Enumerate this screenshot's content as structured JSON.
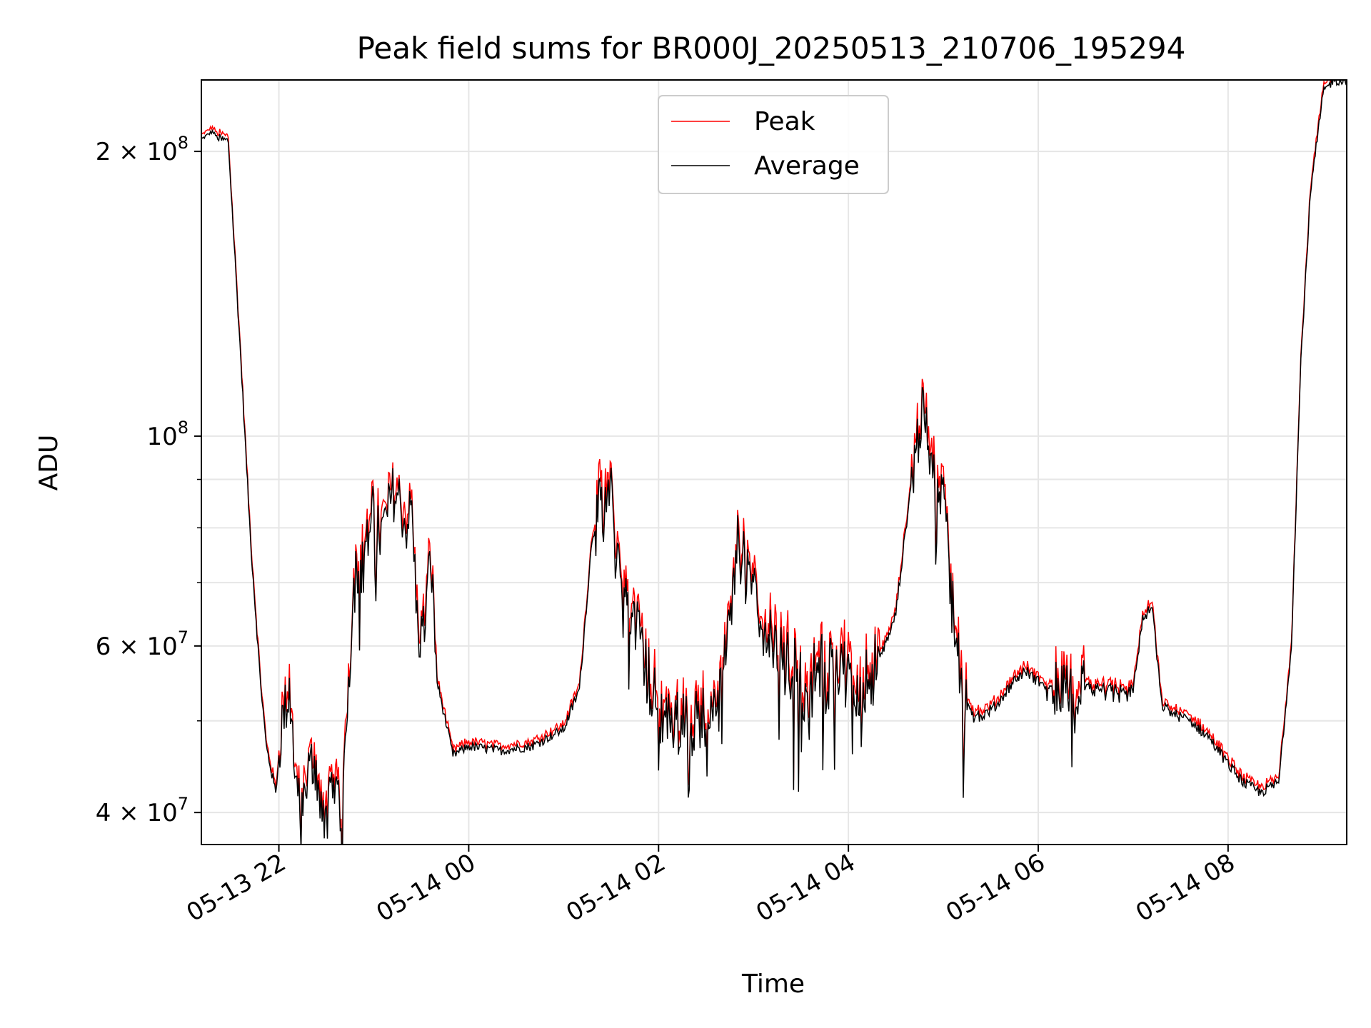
{
  "chart_data": {
    "type": "line",
    "title": "Peak field sums for BR000J_20250513_210706_195294",
    "xlabel": "Time",
    "ylabel": "ADU",
    "yscale": "log",
    "ylim": [
      37000000,
      238000000
    ],
    "xlim": [
      "05-13 21:11",
      "05-14 09:15"
    ],
    "grid": true,
    "legend_position": "upper center",
    "x_ticks": [
      "05-13 22",
      "05-14 00",
      "05-14 02",
      "05-14 04",
      "05-14 06",
      "05-14 08"
    ],
    "y_ticks": [
      {
        "mantissa": "4",
        "exp": "7",
        "value": 40000000
      },
      {
        "mantissa": "6",
        "exp": "7",
        "value": 60000000
      },
      {
        "mantissa": "",
        "exp": "8",
        "value": 100000000
      },
      {
        "mantissa": "2",
        "exp": "8",
        "value": 200000000
      }
    ],
    "y_minor_ticks": [
      50000000,
      70000000,
      80000000,
      90000000
    ],
    "series": [
      {
        "name": "Peak",
        "color": "#ff0000"
      },
      {
        "name": "Average",
        "color": "#000000"
      }
    ],
    "x": [
      "05-13 21:11",
      "05-13 21:18",
      "05-13 21:22",
      "05-13 21:28",
      "05-13 21:36",
      "05-13 21:42",
      "05-13 21:48",
      "05-13 21:52",
      "05-13 21:58",
      "05-13 22:02",
      "05-13 22:06",
      "05-13 22:08",
      "05-13 22:12",
      "05-13 22:14",
      "05-13 22:20",
      "05-13 22:26",
      "05-13 22:30",
      "05-13 22:34",
      "05-13 22:40",
      "05-13 22:44",
      "05-13 22:48",
      "05-13 22:54",
      "05-13 23:00",
      "05-13 23:04",
      "05-13 23:08",
      "05-13 23:12",
      "05-13 23:16",
      "05-13 23:20",
      "05-13 23:24",
      "05-13 23:28",
      "05-13 23:32",
      "05-13 23:36",
      "05-13 23:40",
      "05-13 23:50",
      "05-14 00:00",
      "05-14 00:20",
      "05-14 00:40",
      "05-14 01:00",
      "05-14 01:10",
      "05-14 01:18",
      "05-14 01:24",
      "05-14 01:30",
      "05-14 01:34",
      "05-14 01:40",
      "05-14 01:46",
      "05-14 01:52",
      "05-14 02:00",
      "05-14 02:10",
      "05-14 02:20",
      "05-14 02:30",
      "05-14 02:40",
      "05-14 02:50",
      "05-14 03:00",
      "05-14 03:05",
      "05-14 03:10",
      "05-14 03:18",
      "05-14 03:26",
      "05-14 03:34",
      "05-14 03:42",
      "05-14 03:50",
      "05-14 04:00",
      "05-14 04:10",
      "05-14 04:20",
      "05-14 04:30",
      "05-14 04:40",
      "05-14 04:46",
      "05-14 04:50",
      "05-14 04:54",
      "05-14 05:00",
      "05-14 05:06",
      "05-14 05:12",
      "05-14 05:18",
      "05-14 05:24",
      "05-14 05:34",
      "05-14 05:44",
      "05-14 05:52",
      "05-14 06:00",
      "05-14 06:08",
      "05-14 06:20",
      "05-14 06:40",
      "05-14 07:00",
      "05-14 07:06",
      "05-14 07:12",
      "05-14 07:18",
      "05-14 07:24",
      "05-14 07:36",
      "05-14 07:48",
      "05-14 08:00",
      "05-14 08:10",
      "05-14 08:20",
      "05-14 08:32",
      "05-14 08:40",
      "05-14 08:46",
      "05-14 08:52",
      "05-14 09:00",
      "05-14 09:06",
      "05-14 09:10",
      "05-14 09:15"
    ],
    "values": [
      206000000,
      210000000,
      206000000,
      205000000,
      120000000,
      78000000,
      56000000,
      47000000,
      42000000,
      50000000,
      53000000,
      50000000,
      42000000,
      39000000,
      45000000,
      43000000,
      38000000,
      44000000,
      40000000,
      55000000,
      72000000,
      75000000,
      84000000,
      78000000,
      82000000,
      87000000,
      86000000,
      80000000,
      84000000,
      61000000,
      63000000,
      75000000,
      55000000,
      46000000,
      47000000,
      46500000,
      47000000,
      49000000,
      54000000,
      78000000,
      85000000,
      86000000,
      75000000,
      66000000,
      63000000,
      57000000,
      51000000,
      50000000,
      49500000,
      51000000,
      55000000,
      78000000,
      70000000,
      64000000,
      60000000,
      58000000,
      56000000,
      54000000,
      57000000,
      56000000,
      55500000,
      55000000,
      58000000,
      65000000,
      90000000,
      105000000,
      100000000,
      95000000,
      85000000,
      70000000,
      53000000,
      51000000,
      50500000,
      52000000,
      55000000,
      56500000,
      55000000,
      54000000,
      54500000,
      54000000,
      54000000,
      64000000,
      66000000,
      52000000,
      51000000,
      50000000,
      48000000,
      45000000,
      43000000,
      42000000,
      43000000,
      60000000,
      120000000,
      180000000,
      230000000,
      238000000,
      238000000,
      238000000
    ]
  }
}
